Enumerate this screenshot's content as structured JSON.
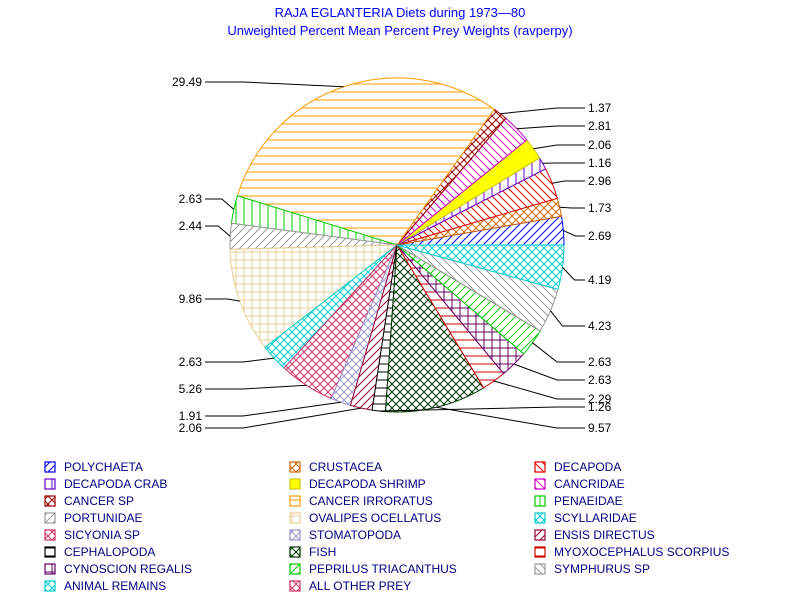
{
  "title": "RAJA EGLANTERIA Diets during 1973—80",
  "subtitle": "Unweighted Percent Mean Percent Prey  Weights (ravperpy)",
  "chart_data": {
    "type": "pie",
    "title": "RAJA EGLANTERIA Diets during 1973—80",
    "subtitle": "Unweighted Percent Mean Percent Prey  Weights (ravperpy)",
    "slices": [
      {
        "label": "POLYCHAETA",
        "value": 2.69,
        "color": "#0000ff",
        "pattern": "fdiag"
      },
      {
        "label": "CRUSTACEA",
        "value": 1.73,
        "color": "#cc6600",
        "pattern": "cross"
      },
      {
        "label": "DECAPODA",
        "value": 2.96,
        "color": "#dd0000",
        "pattern": "bdiag"
      },
      {
        "label": "DECAPODA CRAB",
        "value": 1.16,
        "color": "#6600cc",
        "pattern": "vert"
      },
      {
        "label": "DECAPODA SHRIMP",
        "value": 2.06,
        "color": "#ffff00",
        "pattern": "solid"
      },
      {
        "label": "CANCRIDAE",
        "value": 2.81,
        "color": "#cc00cc",
        "pattern": "bdiag"
      },
      {
        "label": "CANCER SP",
        "value": 1.37,
        "color": "#990000",
        "pattern": "cross"
      },
      {
        "label": "CANCER IRRORATUS",
        "value": 29.49,
        "color": "#ff9900",
        "pattern": "horiz"
      },
      {
        "label": "PENAEIDAE",
        "value": 2.63,
        "color": "#00cc00",
        "pattern": "vert"
      },
      {
        "label": "PORTUNIDAE",
        "value": 2.44,
        "color": "#999999",
        "pattern": "fdiag"
      },
      {
        "label": "OVALIPES OCELLATUS",
        "value": 9.86,
        "color": "#e8d098",
        "pattern": "grid"
      },
      {
        "label": "SCYLLARIDAE",
        "value": 2.63,
        "color": "#00cccc",
        "pattern": "cross"
      },
      {
        "label": "SICYONIA SP",
        "value": 5.26,
        "color": "#cc3366",
        "pattern": "cross"
      },
      {
        "label": "STOMATOPODA",
        "value": 1.91,
        "color": "#9999cc",
        "pattern": "cross"
      },
      {
        "label": "ENSIS DIRECTUS",
        "value": 2.06,
        "color": "#990033",
        "pattern": "fdiag"
      },
      {
        "label": "CEPHALOPODA",
        "value": 1.26,
        "color": "#000000",
        "pattern": "horiz"
      },
      {
        "label": "FISH",
        "value": 9.57,
        "color": "#003300",
        "pattern": "cross"
      },
      {
        "label": "MYOXOCEPHALUS SCORPIUS",
        "value": 2.29,
        "color": "#cc0000",
        "pattern": "horiz"
      },
      {
        "label": "CYNOSCION REGALIS",
        "value": 2.63,
        "color": "#660066",
        "pattern": "grid"
      },
      {
        "label": "PEPRILUS TRIACANTHUS",
        "value": 2.63,
        "color": "#00cc00",
        "pattern": "fdiag"
      },
      {
        "label": "SYMPHURUS SP",
        "value": 4.23,
        "color": "#999999",
        "pattern": "bdiag"
      },
      {
        "label": "ANIMAL REMAINS",
        "value": 4.19,
        "color": "#00cccc",
        "pattern": "cross"
      },
      {
        "label": "ALL OTHER PREY",
        "value": 0.0,
        "color": "#cc3366",
        "pattern": "cross"
      }
    ],
    "legend_placement": "bottom"
  }
}
